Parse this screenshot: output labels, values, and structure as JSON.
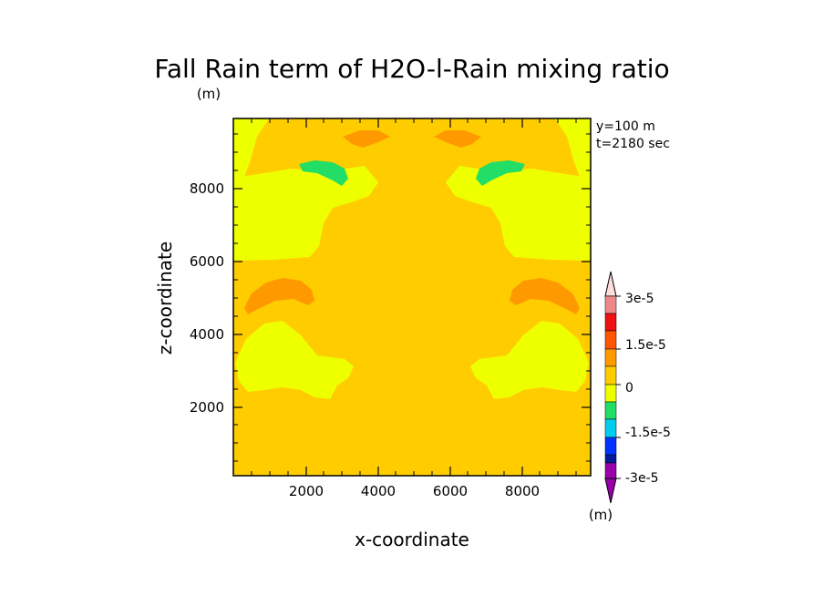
{
  "chart_data": {
    "type": "contour",
    "title": "Fall Rain term of H2O-l-Rain mixing ratio",
    "title_units": "(m)",
    "xlabel": "x-coordinate",
    "ylabel": "z-coordinate",
    "xlim": [
      0,
      9900
    ],
    "ylim": [
      100,
      9900
    ],
    "x_ticks": [
      2000,
      4000,
      6000,
      8000
    ],
    "y_ticks": [
      2000,
      4000,
      6000,
      8000
    ],
    "x_tick_labels": [
      "2000",
      "4000",
      "6000",
      "8000"
    ],
    "y_tick_labels": [
      "2000",
      "4000",
      "6000",
      "8000"
    ],
    "info": [
      "y=100 m",
      "t=2180 sec"
    ],
    "colorbar": {
      "units": "(m)",
      "levels": [
        -3e-05,
        -2.25e-05,
        -1.5e-05,
        -7.5e-06,
        0,
        7.5e-06,
        1.5e-05,
        2.25e-05,
        3e-05
      ],
      "labels": [
        {
          "value": 3e-05,
          "text": "3e-5"
        },
        {
          "value": 1.5e-05,
          "text": "1.5e-5"
        },
        {
          "value": 0,
          "text": "0"
        },
        {
          "value": -1.5e-05,
          "text": "-1.5e-5"
        },
        {
          "value": -3e-05,
          "text": "-3e-5"
        }
      ],
      "colors": [
        "#9900aa",
        "#001a99",
        "#0033ff",
        "#00ccee",
        "#22dd66",
        "#eeff00",
        "#ffcc00",
        "#ff9900",
        "#ff5500",
        "#ee1111",
        "#ee8888",
        "#ffdddd"
      ]
    },
    "background_color": "#ffcc00"
  }
}
